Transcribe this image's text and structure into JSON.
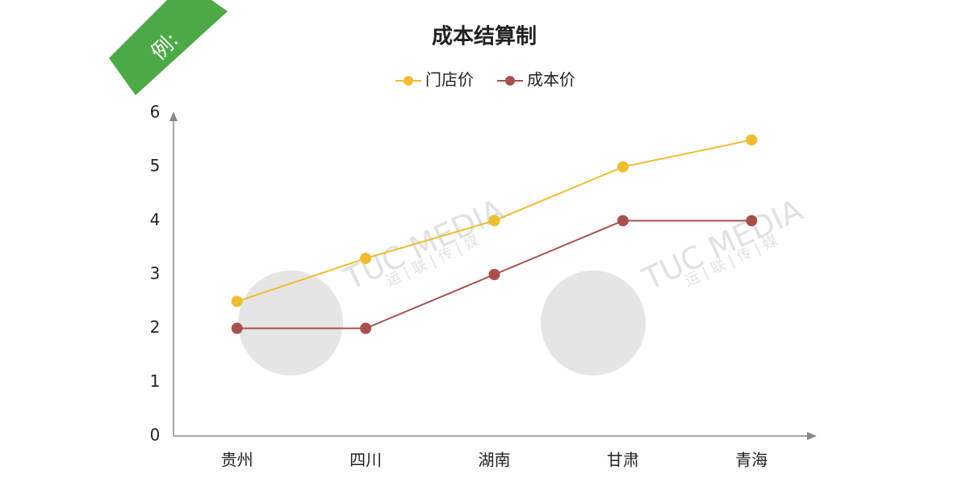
{
  "badge": "例:",
  "watermark": {
    "brand": "TUC MEDIA",
    "chinese": "运 | 联 | 传 | 媒"
  },
  "chart_data": {
    "type": "line",
    "title": "成本结算制",
    "categories": [
      "贵州",
      "四川",
      "湖南",
      "甘肃",
      "青海"
    ],
    "series": [
      {
        "name": "门店价",
        "color": "#f0bc32",
        "values": [
          2.5,
          3.3,
          4,
          5,
          5.5
        ]
      },
      {
        "name": "成本价",
        "color": "#a8514c",
        "values": [
          2,
          2,
          3,
          4,
          4
        ]
      }
    ],
    "ylim": [
      0,
      6
    ],
    "yticks": [
      0,
      1,
      2,
      3,
      4,
      5,
      6
    ],
    "grid": false,
    "legend": "top"
  }
}
